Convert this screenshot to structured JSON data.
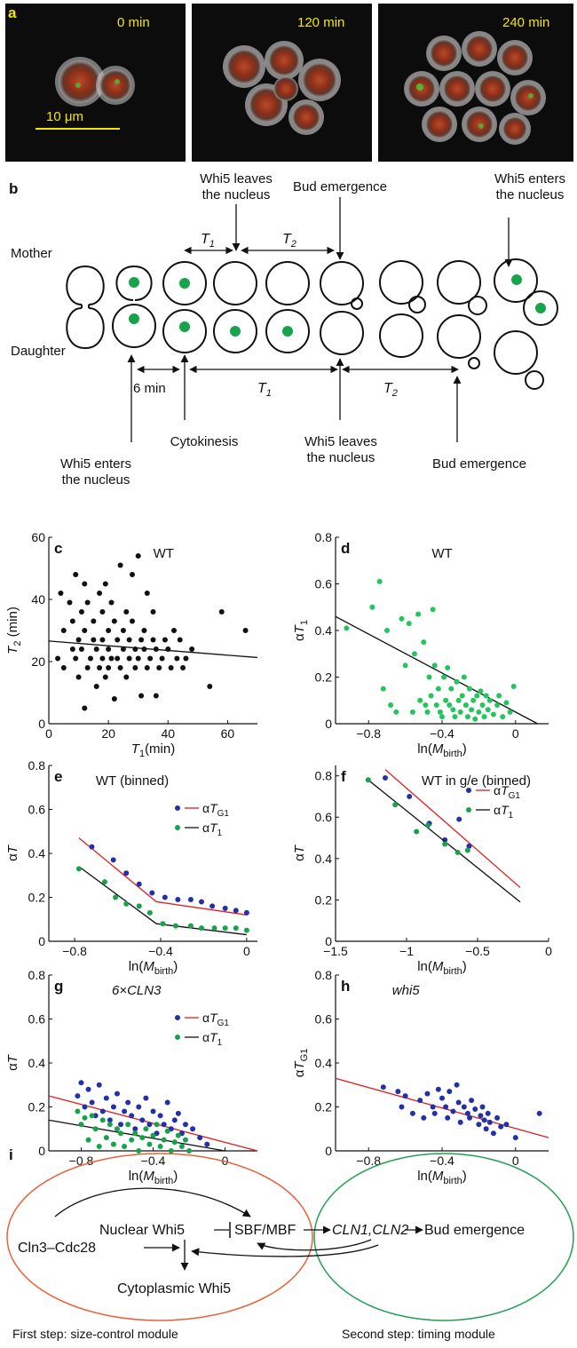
{
  "panel_a": {
    "letter": "a",
    "times": [
      "0 min",
      "120 min",
      "240 min"
    ],
    "scale_bar": "10 μm"
  },
  "panel_b": {
    "letter": "b",
    "mother_label": "Mother",
    "daughter_label": "Daughter",
    "top_whi5_leaves_1": "Whi5 leaves",
    "top_whi5_leaves_2": "the nucleus",
    "top_bud_emergence": "Bud emergence",
    "top_whi5_enters_1": "Whi5 enters",
    "top_whi5_enters_2": "the nucleus",
    "t1": "T",
    "t1_sub": "1",
    "t2": "T",
    "t2_sub": "2",
    "six_min": "6 min",
    "bottom_whi5_enters_1": "Whi5 enters",
    "bottom_whi5_enters_2": "the nucleus",
    "bottom_cytokinesis": "Cytokinesis",
    "bottom_whi5_leaves_1": "Whi5 leaves",
    "bottom_whi5_leaves_2": "the nucleus",
    "bottom_bud_emergence": "Bud emergence",
    "colors": {
      "nucleus": "#16a34a"
    }
  },
  "chart_data": [
    {
      "id": "c",
      "type": "scatter",
      "title": "WT",
      "xlabel": "T1(min)",
      "ylabel": "T2 (min)",
      "xlim": [
        0,
        70
      ],
      "ylim": [
        0,
        60
      ],
      "xticks": [
        0,
        20,
        40,
        60
      ],
      "yticks": [
        0,
        20,
        40,
        60
      ],
      "series": [
        {
          "color": "#111111",
          "x": [
            3,
            4,
            5,
            5,
            7,
            8,
            8,
            9,
            9,
            10,
            10,
            11,
            11,
            12,
            12,
            12,
            13,
            13,
            14,
            15,
            15,
            16,
            16,
            17,
            17,
            18,
            18,
            18,
            19,
            19,
            20,
            20,
            20,
            21,
            21,
            22,
            22,
            23,
            23,
            24,
            24,
            25,
            25,
            26,
            26,
            27,
            27,
            28,
            28,
            29,
            29,
            30,
            30,
            31,
            31,
            32,
            32,
            33,
            33,
            34,
            35,
            35,
            36,
            36,
            37,
            38,
            39,
            40,
            41,
            42,
            43,
            44,
            45,
            46,
            48,
            54,
            58,
            66
          ],
          "y": [
            21,
            42,
            18,
            30,
            39,
            24,
            33,
            21,
            48,
            27,
            15,
            36,
            24,
            5,
            45,
            30,
            18,
            39,
            21,
            27,
            33,
            12,
            24,
            42,
            18,
            36,
            21,
            27,
            15,
            45,
            30,
            24,
            18,
            39,
            21,
            33,
            8,
            27,
            21,
            18,
            51,
            24,
            30,
            36,
            15,
            21,
            27,
            33,
            48,
            24,
            18,
            54,
            21,
            27,
            9,
            30,
            24,
            42,
            18,
            21,
            36,
            27,
            24,
            9,
            18,
            21,
            27,
            24,
            18,
            30,
            21,
            27,
            18,
            21,
            24,
            12,
            36,
            30
          ]
        }
      ],
      "fit_line": {
        "x": [
          0,
          70
        ],
        "y": [
          26.6,
          21.3
        ],
        "color": "#111111"
      }
    },
    {
      "id": "d",
      "type": "scatter",
      "title": "WT",
      "xlabel": "ln(Mbirth)",
      "ylabel": "αT1",
      "xlim": [
        -0.98,
        0.18
      ],
      "ylim": [
        0,
        0.8
      ],
      "xticks": [
        -0.8,
        -0.4,
        0
      ],
      "yticks": [
        0,
        0.2,
        0.4,
        0.6,
        0.8
      ],
      "series": [
        {
          "color": "#22c55e",
          "x": [
            -0.92,
            -0.78,
            -0.74,
            -0.72,
            -0.7,
            -0.68,
            -0.65,
            -0.62,
            -0.6,
            -0.58,
            -0.56,
            -0.55,
            -0.53,
            -0.52,
            -0.5,
            -0.49,
            -0.48,
            -0.47,
            -0.46,
            -0.45,
            -0.44,
            -0.43,
            -0.42,
            -0.41,
            -0.4,
            -0.39,
            -0.38,
            -0.37,
            -0.36,
            -0.35,
            -0.34,
            -0.33,
            -0.32,
            -0.31,
            -0.3,
            -0.29,
            -0.28,
            -0.27,
            -0.26,
            -0.25,
            -0.24,
            -0.23,
            -0.22,
            -0.21,
            -0.2,
            -0.19,
            -0.18,
            -0.17,
            -0.16,
            -0.15,
            -0.14,
            -0.12,
            -0.1,
            -0.09,
            -0.07,
            -0.05,
            -0.03,
            -0.01
          ],
          "y": [
            0.41,
            0.5,
            0.61,
            0.15,
            0.4,
            0.08,
            0.05,
            0.45,
            0.25,
            0.43,
            0.05,
            0.3,
            0.47,
            0.1,
            0.35,
            0.08,
            0.05,
            0.2,
            0.12,
            0.49,
            0.25,
            0.08,
            0.15,
            0.05,
            0.03,
            0.2,
            0.1,
            0.24,
            0.08,
            0.15,
            0.06,
            0.03,
            0.18,
            0.1,
            0.05,
            0.12,
            0.2,
            0.08,
            0.03,
            0.15,
            0.06,
            0.1,
            0.02,
            0.12,
            0.05,
            0.14,
            0.08,
            0.03,
            0.12,
            0.06,
            0.1,
            0.04,
            0.08,
            0.12,
            0.03,
            0.09,
            0.05,
            0.16
          ]
        }
      ],
      "fit_line": {
        "x": [
          -0.98,
          0.12
        ],
        "y": [
          0.46,
          0.0
        ],
        "color": "#111111"
      }
    },
    {
      "id": "e",
      "type": "line",
      "title": "WT (binned)",
      "xlabel": "ln(Mbirth)",
      "ylabel": "αT",
      "xlim": [
        -0.92,
        0.05
      ],
      "ylim": [
        0,
        0.8
      ],
      "xticks": [
        -0.8,
        -0.4,
        0
      ],
      "yticks": [
        0,
        0.2,
        0.4,
        0.6,
        0.8
      ],
      "series": [
        {
          "name": "αTG1",
          "color": "#2330a8",
          "x": [
            -0.72,
            -0.62,
            -0.56,
            -0.5,
            -0.44,
            -0.38,
            -0.32,
            -0.26,
            -0.21,
            -0.16,
            -0.1,
            -0.05,
            0.0
          ],
          "y": [
            0.43,
            0.37,
            0.31,
            0.26,
            0.22,
            0.2,
            0.19,
            0.19,
            0.18,
            0.16,
            0.15,
            0.14,
            0.13
          ],
          "fit": [
            [
              -0.78,
              0.47
            ],
            [
              -0.42,
              0.18
            ],
            [
              0.0,
              0.12
            ]
          ],
          "fit_color": "#e11d1d"
        },
        {
          "name": "αT1",
          "color": "#16a34a",
          "x": [
            -0.78,
            -0.66,
            -0.61,
            -0.56,
            -0.5,
            -0.45,
            -0.39,
            -0.33,
            -0.26,
            -0.21,
            -0.15,
            -0.1,
            -0.05,
            0.0
          ],
          "y": [
            0.33,
            0.27,
            0.2,
            0.17,
            0.16,
            0.13,
            0.08,
            0.07,
            0.07,
            0.06,
            0.06,
            0.06,
            0.06,
            0.05
          ],
          "fit": [
            [
              -0.78,
              0.34
            ],
            [
              -0.42,
              0.08
            ],
            [
              0.0,
              0.03
            ]
          ],
          "fit_color": "#111111"
        }
      ]
    },
    {
      "id": "f",
      "type": "line",
      "title": "WT in g/e (binned)",
      "xlabel": "ln(Mbirth)",
      "ylabel": "αT",
      "xlim": [
        -1.5,
        0.0
      ],
      "ylim": [
        0,
        0.85
      ],
      "xticks": [
        -1.5,
        -1,
        -0.5,
        0
      ],
      "yticks": [
        0,
        0.2,
        0.4,
        0.6,
        0.8
      ],
      "series": [
        {
          "name": "αTG1",
          "color": "#2330a8",
          "x": [
            -1.15,
            -0.98,
            -0.84,
            -0.73,
            -0.63,
            -0.56
          ],
          "y": [
            0.79,
            0.7,
            0.57,
            0.49,
            0.59,
            0.46
          ],
          "fit": [
            [
              -1.15,
              0.83
            ],
            [
              -0.2,
              0.26
            ]
          ],
          "fit_color": "#e11d1d"
        },
        {
          "name": "αT1",
          "color": "#16a34a",
          "x": [
            -1.27,
            -1.08,
            -0.93,
            -0.85,
            -0.73,
            -0.64,
            -0.57
          ],
          "y": [
            0.78,
            0.66,
            0.53,
            0.56,
            0.47,
            0.43,
            0.44
          ],
          "fit": [
            [
              -1.27,
              0.78
            ],
            [
              -0.2,
              0.19
            ]
          ],
          "fit_color": "#111111"
        }
      ]
    },
    {
      "id": "g",
      "type": "scatter",
      "title": "6×CLN3",
      "xlabel": "ln(Mbirth)",
      "ylabel": "αT",
      "xlim": [
        -0.98,
        0.18
      ],
      "ylim": [
        0,
        0.8
      ],
      "xticks": [
        -0.8,
        -0.4,
        0
      ],
      "yticks": [
        0,
        0.2,
        0.4,
        0.6,
        0.8
      ],
      "series": [
        {
          "name": "αTG1",
          "color": "#2330a8",
          "x": [
            -0.82,
            -0.8,
            -0.78,
            -0.76,
            -0.74,
            -0.72,
            -0.7,
            -0.68,
            -0.66,
            -0.64,
            -0.62,
            -0.6,
            -0.58,
            -0.56,
            -0.54,
            -0.52,
            -0.5,
            -0.48,
            -0.46,
            -0.44,
            -0.42,
            -0.4,
            -0.38,
            -0.36,
            -0.34,
            -0.32,
            -0.3,
            -0.28,
            -0.26,
            -0.24,
            -0.22,
            -0.18,
            -0.14,
            -0.1
          ],
          "y": [
            0.25,
            0.31,
            0.2,
            0.28,
            0.22,
            0.16,
            0.3,
            0.18,
            0.24,
            0.14,
            0.2,
            0.26,
            0.12,
            0.18,
            0.22,
            0.16,
            0.1,
            0.2,
            0.14,
            0.24,
            0.12,
            0.18,
            0.08,
            0.16,
            0.12,
            0.22,
            0.1,
            0.14,
            0.17,
            0.08,
            0.12,
            0.1,
            0.06,
            0.03
          ]
        },
        {
          "name": "αT1",
          "color": "#16a34a",
          "x": [
            -0.82,
            -0.8,
            -0.78,
            -0.76,
            -0.74,
            -0.72,
            -0.7,
            -0.68,
            -0.66,
            -0.64,
            -0.62,
            -0.6,
            -0.58,
            -0.56,
            -0.54,
            -0.52,
            -0.5,
            -0.48,
            -0.46,
            -0.44,
            -0.42,
            -0.4,
            -0.38,
            -0.36,
            -0.34,
            -0.32,
            -0.3,
            -0.28,
            -0.26,
            -0.24,
            -0.22,
            -0.2
          ],
          "y": [
            0.18,
            0.12,
            0.15,
            0.05,
            0.16,
            0.1,
            0.02,
            0.14,
            0.06,
            0.12,
            0.03,
            0.1,
            0.08,
            0.02,
            0.12,
            0.05,
            0.08,
            0.0,
            0.06,
            0.1,
            0.03,
            0.07,
            0.12,
            0.02,
            0.05,
            0.09,
            0.0,
            0.04,
            0.07,
            0.02,
            0.05,
            0.0
          ]
        }
      ],
      "fit_lines": [
        {
          "x": [
            -0.98,
            0.18
          ],
          "y": [
            0.25,
            0.0
          ],
          "color": "#e11d1d"
        },
        {
          "x": [
            -0.98,
            0.0
          ],
          "y": [
            0.14,
            0.0
          ],
          "color": "#111111"
        }
      ]
    },
    {
      "id": "h",
      "type": "scatter",
      "title": "whi5",
      "xlabel": "ln(Mbirth)",
      "ylabel": "αTG1",
      "xlim": [
        -0.98,
        0.18
      ],
      "ylim": [
        0,
        0.8
      ],
      "xticks": [
        -0.8,
        -0.4,
        0
      ],
      "yticks": [
        0,
        0.2,
        0.4,
        0.6,
        0.8
      ],
      "series": [
        {
          "color": "#2330a8",
          "x": [
            -0.72,
            -0.64,
            -0.62,
            -0.6,
            -0.56,
            -0.52,
            -0.5,
            -0.48,
            -0.45,
            -0.44,
            -0.42,
            -0.4,
            -0.38,
            -0.37,
            -0.36,
            -0.34,
            -0.32,
            -0.31,
            -0.3,
            -0.28,
            -0.26,
            -0.25,
            -0.24,
            -0.22,
            -0.2,
            -0.19,
            -0.18,
            -0.17,
            -0.16,
            -0.15,
            -0.14,
            -0.12,
            -0.1,
            -0.08,
            -0.05,
            0.0,
            0.13
          ],
          "y": [
            0.29,
            0.27,
            0.2,
            0.25,
            0.17,
            0.23,
            0.15,
            0.26,
            0.2,
            0.17,
            0.28,
            0.24,
            0.2,
            0.15,
            0.27,
            0.18,
            0.3,
            0.22,
            0.13,
            0.2,
            0.17,
            0.15,
            0.23,
            0.19,
            0.12,
            0.16,
            0.2,
            0.14,
            0.1,
            0.17,
            0.13,
            0.08,
            0.15,
            0.11,
            0.12,
            0.06,
            0.17
          ]
        }
      ],
      "fit_line": {
        "x": [
          -0.98,
          0.18
        ],
        "y": [
          0.33,
          0.06
        ],
        "color": "#e11d1d"
      }
    }
  ],
  "panel_i": {
    "letter": "i",
    "nuclear_whi5": "Nuclear Whi5",
    "sbf_mbf": "SBF/MBF",
    "cln12": "CLN1,CLN2",
    "bud_emergence": "Bud emergence",
    "cln3": "Cln3–Cdc28",
    "cyto_whi5": "Cytoplasmic Whi5",
    "first_step": "First step: size-control module",
    "second_step": "Second step: timing module",
    "colors": {
      "first": "#e8623a",
      "second": "#22a050"
    }
  }
}
